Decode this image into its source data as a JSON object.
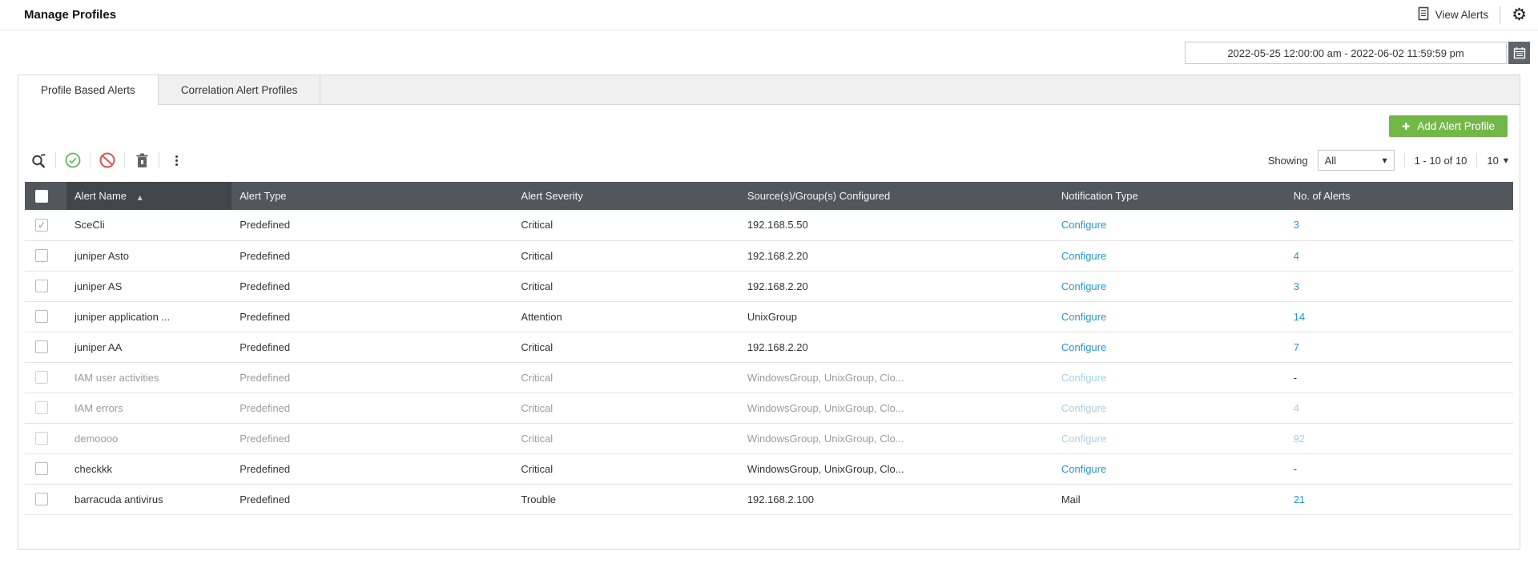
{
  "header": {
    "title": "Manage Profiles",
    "view_alerts_label": "View Alerts"
  },
  "date_range": {
    "value": "2022-05-25 12:00:00 am - 2022-06-02 11:59:59 pm"
  },
  "tabs": [
    {
      "label": "Profile Based Alerts",
      "active": true
    },
    {
      "label": "Correlation Alert Profiles",
      "active": false
    }
  ],
  "add_button": {
    "label": "Add Alert Profile",
    "plus": "✚"
  },
  "toolbar": {
    "icons": [
      "search-icon",
      "enable-icon",
      "disable-icon",
      "delete-icon",
      "more-icon"
    ],
    "showing_label": "Showing",
    "filter_value": "All",
    "range_text": "1 - 10 of 10",
    "page_size": "10"
  },
  "table": {
    "columns": {
      "name": "Alert Name",
      "type": "Alert Type",
      "severity": "Alert Severity",
      "source": "Source(s)/Group(s) Configured",
      "notification": "Notification Type",
      "alerts": "No. of Alerts"
    },
    "sort": {
      "column": "Alert Name",
      "direction": "asc"
    },
    "rows": [
      {
        "name": "SceCli",
        "type": "Predefined",
        "severity": "Critical",
        "source": "192.168.5.50",
        "notification": "Configure",
        "notification_is_link": true,
        "alerts": "3",
        "alerts_is_link": true,
        "checked": true,
        "disabled": false
      },
      {
        "name": "juniper Asto",
        "type": "Predefined",
        "severity": "Critical",
        "source": "192.168.2.20",
        "notification": "Configure",
        "notification_is_link": true,
        "alerts": "4",
        "alerts_is_link": true,
        "checked": false,
        "disabled": false
      },
      {
        "name": "juniper AS",
        "type": "Predefined",
        "severity": "Critical",
        "source": "192.168.2.20",
        "notification": "Configure",
        "notification_is_link": true,
        "alerts": "3",
        "alerts_is_link": true,
        "checked": false,
        "disabled": false
      },
      {
        "name": "juniper application ...",
        "type": "Predefined",
        "severity": "Attention",
        "source": "UnixGroup",
        "notification": "Configure",
        "notification_is_link": true,
        "alerts": "14",
        "alerts_is_link": true,
        "checked": false,
        "disabled": false
      },
      {
        "name": "juniper AA",
        "type": "Predefined",
        "severity": "Critical",
        "source": "192.168.2.20",
        "notification": "Configure",
        "notification_is_link": true,
        "alerts": "7",
        "alerts_is_link": true,
        "checked": false,
        "disabled": false
      },
      {
        "name": "IAM user activities",
        "type": "Predefined",
        "severity": "Critical",
        "source": "WindowsGroup, UnixGroup, Clo...",
        "notification": "Configure",
        "notification_is_link": true,
        "alerts": "-",
        "alerts_is_link": false,
        "checked": false,
        "disabled": true
      },
      {
        "name": "IAM errors",
        "type": "Predefined",
        "severity": "Critical",
        "source": "WindowsGroup, UnixGroup, Clo...",
        "notification": "Configure",
        "notification_is_link": true,
        "alerts": "4",
        "alerts_is_link": true,
        "checked": false,
        "disabled": true
      },
      {
        "name": "demoooo",
        "type": "Predefined",
        "severity": "Critical",
        "source": "WindowsGroup, UnixGroup, Clo...",
        "notification": "Configure",
        "notification_is_link": true,
        "alerts": "92",
        "alerts_is_link": true,
        "checked": false,
        "disabled": true
      },
      {
        "name": "checkkk",
        "type": "Predefined",
        "severity": "Critical",
        "source": "WindowsGroup, UnixGroup, Clo...",
        "notification": "Configure",
        "notification_is_link": true,
        "alerts": "-",
        "alerts_is_link": false,
        "checked": false,
        "disabled": false
      },
      {
        "name": "barracuda antivirus",
        "type": "Predefined",
        "severity": "Trouble",
        "source": "192.168.2.100",
        "notification": "Mail",
        "notification_is_link": false,
        "alerts": "21",
        "alerts_is_link": true,
        "checked": false,
        "disabled": false
      }
    ]
  },
  "colors": {
    "accent_green": "#74b749",
    "link_blue": "#2596d1",
    "link_blue_disabled": "#a9cfe7",
    "table_header_bg": "#51575c",
    "table_header_sorted_bg": "#41464a",
    "icon_green": "#5cb85c",
    "icon_red": "#e05252"
  }
}
